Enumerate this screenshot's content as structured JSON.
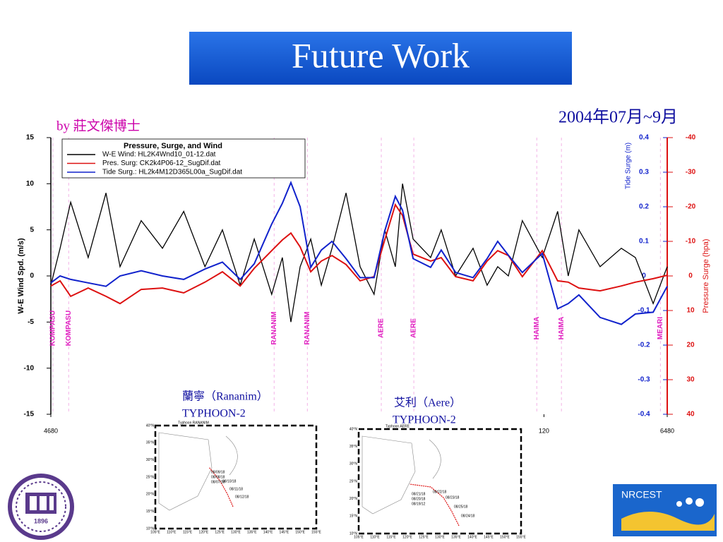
{
  "header": {
    "title": "Future Work",
    "author": "by 莊文傑博士",
    "period": "2004年07月~9月"
  },
  "chart_data": {
    "type": "line",
    "legend_title": "Pressure, Surge, and Wind",
    "ylabel": "W-E Wind Spd. (m/s)",
    "y2label": "Tide Surge (m)",
    "y3label": "Pressure Surge (hpa)",
    "x": [
      4680,
      4707,
      4738,
      4789,
      4841,
      4882,
      4944,
      5006,
      5068,
      5130,
      5181,
      5233,
      5274,
      5325,
      5356,
      5381,
      5408,
      5439,
      5470,
      5501,
      5542,
      5583,
      5624,
      5655,
      5686,
      5707,
      5738,
      5789,
      5820,
      5862,
      5913,
      5954,
      5985,
      6016,
      6057,
      6115,
      6160,
      6191,
      6222,
      6284,
      6346,
      6387,
      6439,
      6480
    ],
    "series": [
      {
        "name": "W-E Wind: HL2K4Wnd10_01-12.dat",
        "color": "#000000",
        "axis": "y",
        "values": [
          -1,
          3,
          8,
          2,
          9,
          1,
          6,
          3,
          7,
          1,
          5,
          -1,
          4,
          -2,
          2,
          -5,
          1,
          4,
          -1,
          3,
          9,
          1,
          -2,
          5,
          1,
          10,
          4,
          2,
          5,
          0,
          3,
          -1,
          1,
          0,
          6,
          2,
          7,
          0,
          5,
          1,
          3,
          2,
          -3,
          1
        ]
      },
      {
        "name": "Pres. Surg: CK2k4P06-12_SugDif.dat",
        "color": "#dd1111",
        "axis": "y3",
        "values": [
          2.9,
          1.4,
          5.9,
          3.5,
          5.9,
          8.0,
          3.9,
          3.5,
          4.9,
          1.8,
          -1.2,
          2.9,
          -2.2,
          -7.3,
          -10.4,
          -12.4,
          -8.4,
          -1.2,
          -4.3,
          -5.9,
          -3.3,
          1.4,
          0.2,
          -10.4,
          -20.6,
          -17.5,
          -6.3,
          -4.3,
          -5.3,
          0.2,
          1.4,
          -4.3,
          -7.3,
          -5.9,
          0.2,
          -7.3,
          1.4,
          1.8,
          3.5,
          4.3,
          2.9,
          1.8,
          0.8,
          -0.2
        ]
      },
      {
        "name": "Tide Surg.: HL2k4M12D365L00a_SugDif.dat",
        "color": "#1122cc",
        "axis": "y2",
        "values": [
          -0.02,
          0.0,
          -0.01,
          -0.02,
          -0.03,
          0.0,
          0.015,
          0.0,
          -0.01,
          0.02,
          0.04,
          -0.01,
          0.035,
          0.15,
          0.21,
          0.27,
          0.2,
          0.025,
          0.075,
          0.1,
          0.05,
          -0.005,
          -0.005,
          0.13,
          0.23,
          0.19,
          0.05,
          0.025,
          0.075,
          0.01,
          -0.005,
          0.05,
          0.1,
          0.06,
          0.01,
          0.065,
          -0.095,
          -0.08,
          -0.055,
          -0.12,
          -0.14,
          -0.11,
          -0.105,
          -0.03
        ]
      }
    ],
    "xlim": [
      4680,
      6480
    ],
    "xticks": [
      4680,
      {
        "value": 6120,
        "label": "120"
      },
      6480
    ],
    "ylim": [
      -15,
      15
    ],
    "yticks": [
      -15,
      -10,
      -5,
      0,
      5,
      10,
      15
    ],
    "y2lim": [
      -0.4,
      0.4
    ],
    "y2ticks": [
      0.4,
      0.3,
      0.2,
      0.1,
      0,
      -0.1,
      -0.2,
      -0.3,
      -0.4
    ],
    "y3lim": [
      40,
      -40
    ],
    "y3ticks": [
      -40,
      -30,
      -20,
      -10,
      0,
      10,
      20,
      30,
      40
    ],
    "annotations": [
      {
        "label": "KOMPASU",
        "x": 4686
      },
      {
        "label": "KOMPASU",
        "x": 4732
      },
      {
        "label": "RANANIM",
        "x": 5332
      },
      {
        "label": "RANANIM",
        "x": 5429
      },
      {
        "label": "AERE",
        "x": 5645
      },
      {
        "label": "AERE",
        "x": 5740
      },
      {
        "label": "HAIMA",
        "x": 6099
      },
      {
        "label": "HAIMA",
        "x": 6171
      },
      {
        "label": "MEARI",
        "x": 6460
      }
    ]
  },
  "captions": [
    {
      "name": "蘭寧（Rananim）",
      "kind": "TYPHOON-2"
    },
    {
      "name": "艾利（Aere）",
      "kind": "TYPHOON-2"
    }
  ],
  "maps": [
    {
      "title": "Typhoon RANANIM",
      "lat_labels": [
        "40°N",
        "35°N",
        "30°N",
        "25°N",
        "20°N",
        "15°N",
        "10°N"
      ],
      "lon_labels": [
        "105°E",
        "110°E",
        "115°E",
        "120°E",
        "125°E",
        "130°E",
        "135°E",
        "140°E",
        "145°E",
        "150°E",
        "155°E"
      ],
      "dates": [
        "08/12/18",
        "08/11/18",
        "08/10/18",
        "08/09/18",
        "08/08/18",
        "08/07/18"
      ]
    },
    {
      "title": "Typhoon AERE",
      "lat_labels": [
        "40°N",
        "35°N",
        "30°N",
        "25°N",
        "20°N",
        "15°N",
        "10°N"
      ],
      "lon_labels": [
        "105°E",
        "110°E",
        "115°E",
        "120°E",
        "125°E",
        "130°E",
        "135°E",
        "140°E",
        "145°E",
        "150°E",
        "155°E"
      ],
      "dates": [
        "08/24/18",
        "08/25/18",
        "08/23/18",
        "08/22/18",
        "08/21/18",
        "08/20/18",
        "08/19/12"
      ]
    }
  ],
  "logos": {
    "year": "1896",
    "org": "NRCEST"
  }
}
